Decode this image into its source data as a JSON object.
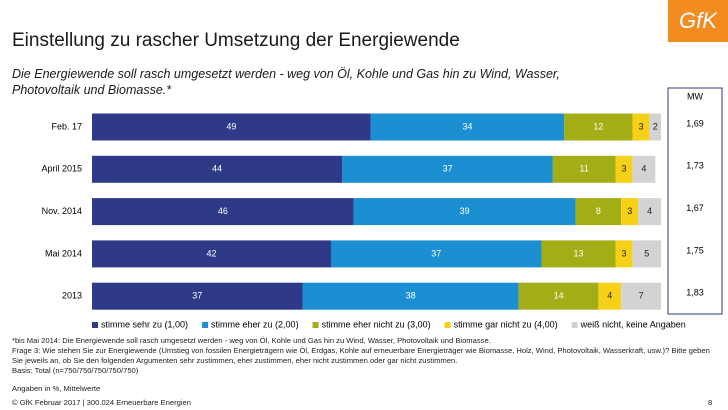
{
  "chart_data": {
    "type": "stacked_bar_horizontal",
    "title": "Einstellung zu rascher Umsetzung der Energiewende",
    "subtitle": "Die Energiewende soll rasch umgesetzt werden - weg von Öl, Kohle und Gas hin zu Wind, Wasser, Photovoltaik und Biomasse.*",
    "categories": [
      "Feb. 17",
      "April 2015",
      "Nov. 2014",
      "Mai 2014",
      "2013"
    ],
    "xlim": [
      0,
      100
    ],
    "series": [
      {
        "name": "stimme sehr zu (1,00)",
        "color": "#2e3a87",
        "values": [
          49,
          44,
          46,
          42,
          37
        ]
      },
      {
        "name": "stimme eher zu (2,00)",
        "color": "#1b8fd2",
        "values": [
          34,
          37,
          39,
          37,
          38
        ]
      },
      {
        "name": "stimme eher nicht zu (3,00)",
        "color": "#a3ad16",
        "values": [
          12,
          11,
          8,
          13,
          14
        ]
      },
      {
        "name": "stimme gar nicht zu (4,00)",
        "color": "#f7d117",
        "values": [
          3,
          3,
          3,
          3,
          4
        ]
      },
      {
        "name": "weiß nicht, keine Angaben",
        "color": "#d3d3d3",
        "values": [
          2,
          4,
          4,
          5,
          7
        ]
      }
    ],
    "mean": {
      "title": "MW",
      "values": [
        1.69,
        1.73,
        1.67,
        1.75,
        1.83
      ],
      "value_labels": [
        "1,69",
        "1,73",
        "1,67",
        "1,75",
        "1,83"
      ]
    },
    "legend": "bottom"
  },
  "notes": [
    "*bis Mai 2014: Die Energiewende soll rasch umgesetzt werden - weg von Öl, Kohle und Gas hin zu Wind, Wasser, Photovoltaik und Biomasse.",
    "Frage 3: Wie stehen Sie zur Energiewende (Umstieg von fossilen Energieträgern wie Öl, Erdgas, Kohle auf erneuerbare Energieträger wie Biomasse, Holz, Wind, Photovoltaik, Wasserkraft, usw.)? Bitte geben Sie jeweils an, ob Sie den folgenden Argumenten sehr zustimmen, eher zustimmen, eher nicht zustimmen oder gar nicht zustimmen.",
    "Basis: Total (n=750/750/750/750/750)"
  ],
  "units_note": "Angaben in %, Mittelwerte",
  "footer": "© GfK Februar 2017 | 300.024 Erneuerbare Energien",
  "page_number": "8",
  "logo": "GfK"
}
